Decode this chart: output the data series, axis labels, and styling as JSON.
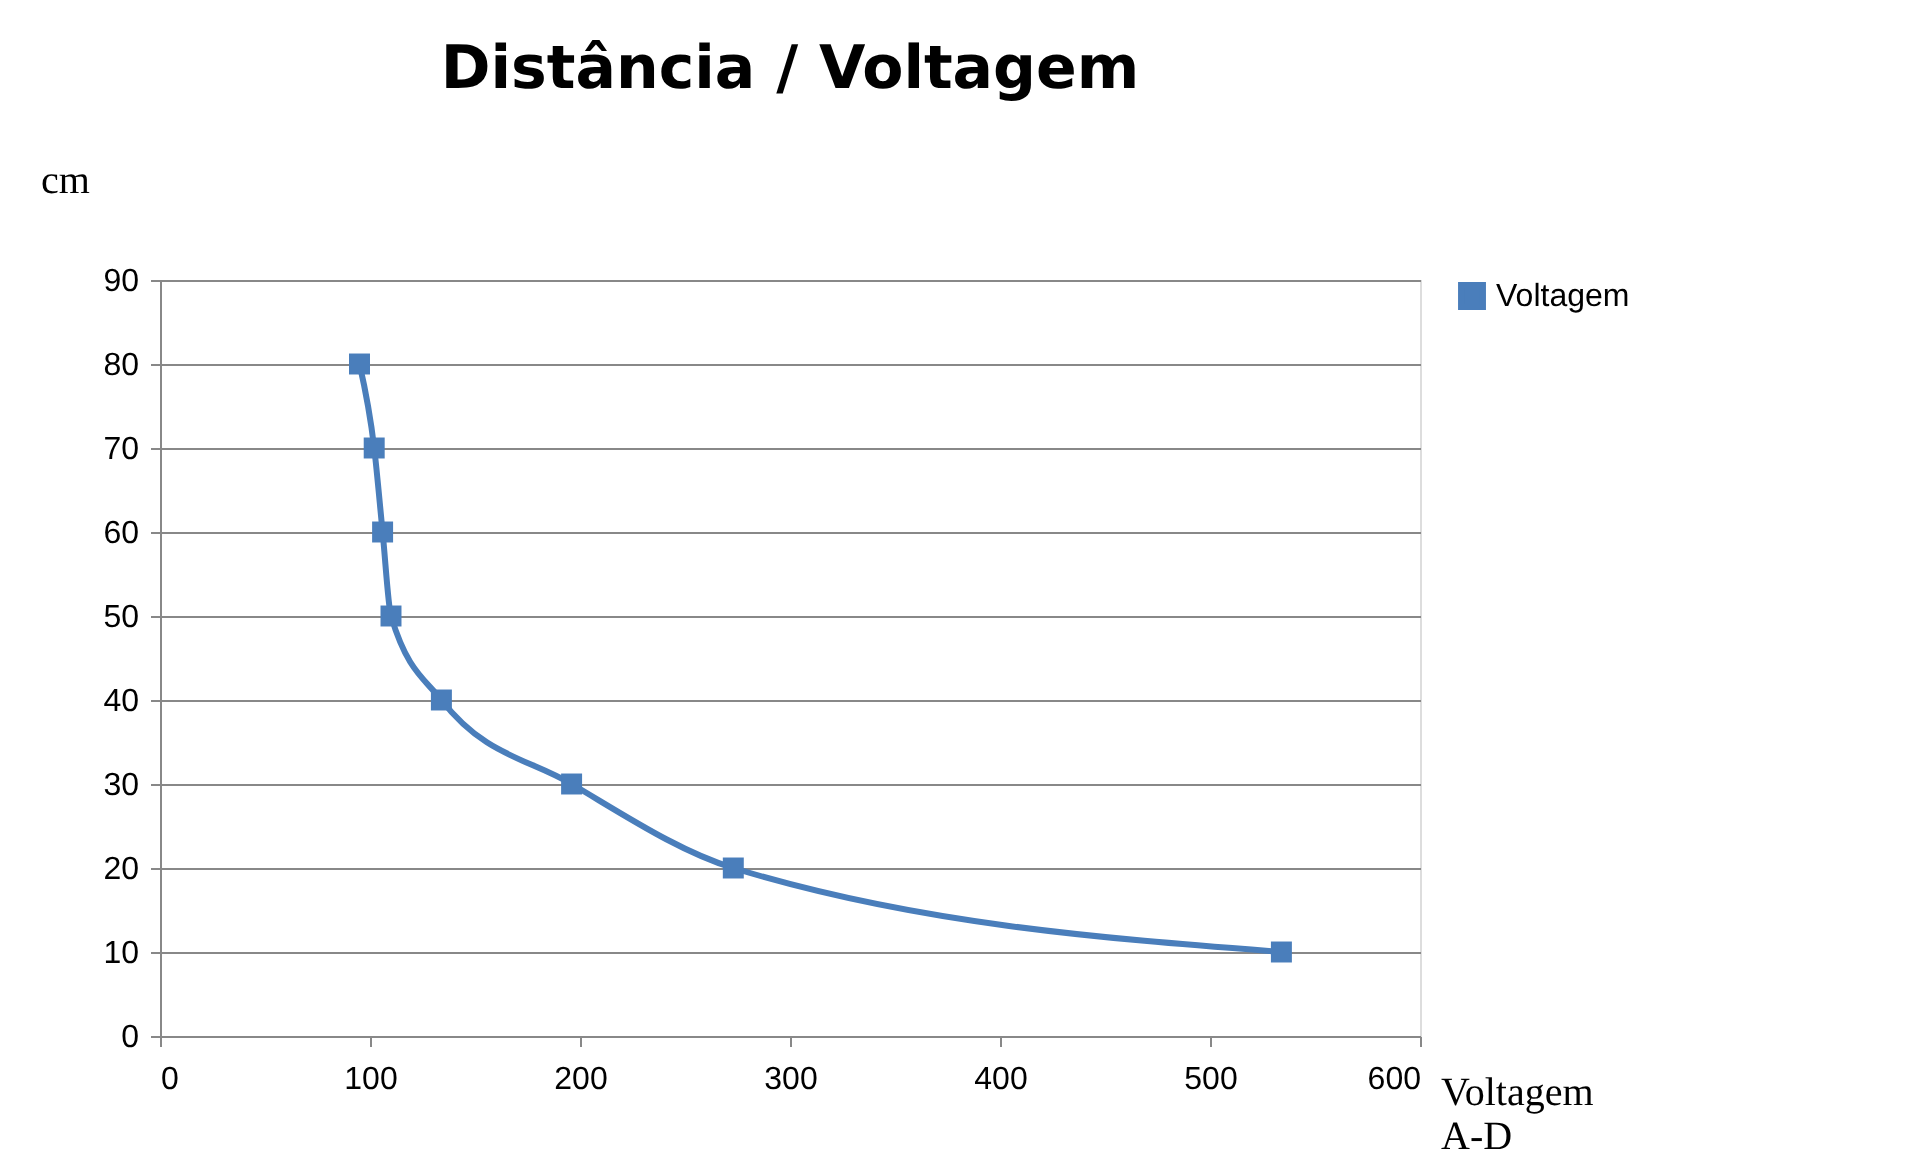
{
  "chart_data": {
    "type": "line",
    "title": "Distância / Voltagem",
    "xlabel": "Voltagem A-D",
    "ylabel": "cm",
    "x": [
      95,
      102,
      106,
      110,
      134,
      196,
      273,
      534
    ],
    "series": [
      {
        "name": "Voltagem",
        "color": "#4a7ebb",
        "values": [
          80,
          70,
          60,
          50,
          40,
          30,
          20,
          10
        ]
      }
    ],
    "xlim": [
      0,
      600
    ],
    "xticks": [
      0,
      100,
      200,
      300,
      400,
      500,
      600
    ],
    "ylim": [
      0,
      90
    ],
    "yticks": [
      0,
      10,
      20,
      30,
      40,
      50,
      60,
      70,
      80,
      90
    ],
    "grid": "y",
    "legend": "right",
    "marker": "square",
    "line_style": "solid"
  }
}
